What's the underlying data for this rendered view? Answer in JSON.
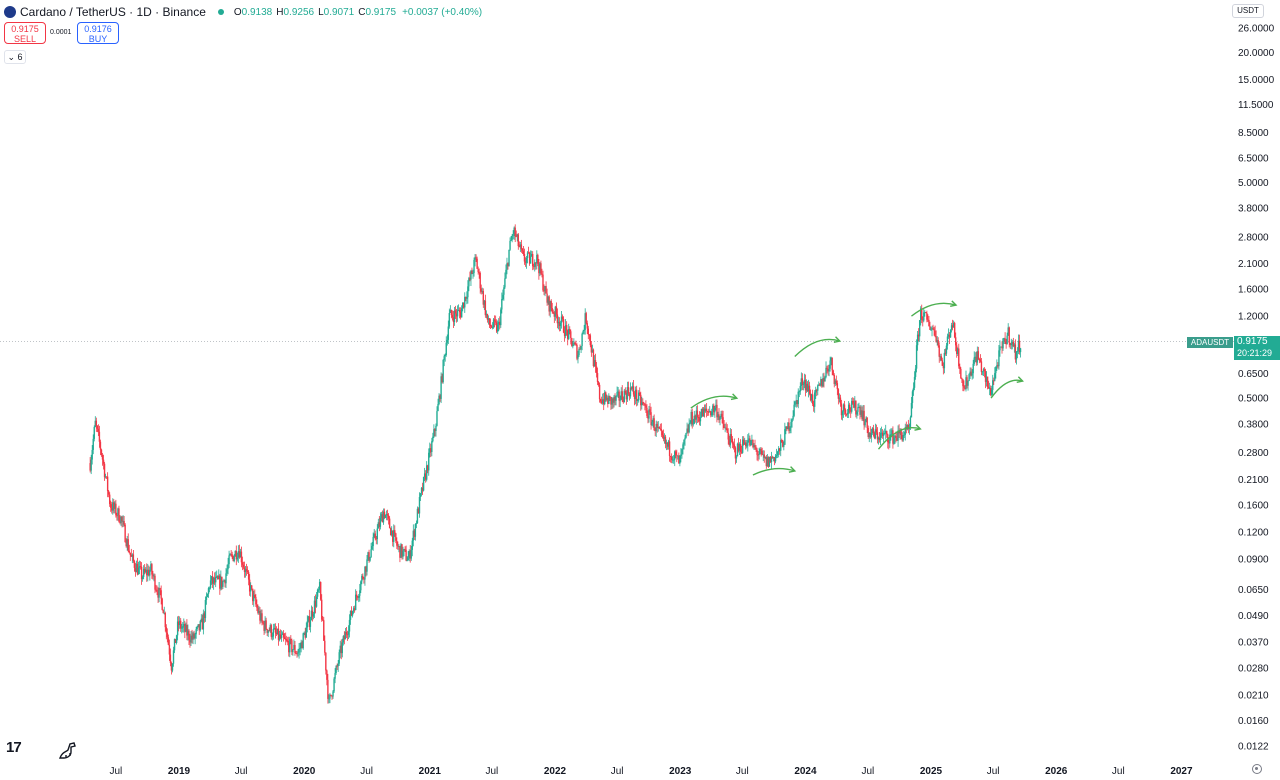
{
  "header": {
    "title": "Cardano / TetherUS · 1D · Binance",
    "o_label": "O",
    "o_value": "0.9138",
    "h_label": "H",
    "h_value": "0.9256",
    "l_label": "L",
    "l_value": "0.9071",
    "c_label": "C",
    "c_value": "0.9175",
    "change": "+0.0037 (+0.40%)"
  },
  "trade": {
    "sell_price": "0.9175",
    "sell_label": "SELL",
    "spread": "0.0001",
    "buy_price": "0.9176",
    "buy_label": "BUY"
  },
  "indicators_count": "6",
  "currency": "USDT",
  "ticker": "ADAUSDT",
  "last_price": "0.9175",
  "countdown": "20:21:29",
  "brand": "17",
  "colors": {
    "up": "#22ab94",
    "down": "#f23645",
    "arrow": "#4caf50",
    "text": "#131722"
  },
  "chart_data": {
    "type": "candlestick",
    "symbol": "ADAUSDT",
    "interval": "1D",
    "y_scale": "log",
    "ylim": [
      0.0122,
      26.0
    ],
    "y_ticks": [
      "26.0000",
      "20.0000",
      "15.0000",
      "11.5000",
      "8.5000",
      "6.5000",
      "5.0000",
      "3.8000",
      "2.8000",
      "2.1000",
      "1.6000",
      "1.2000",
      "0.8500",
      "0.6500",
      "0.5000",
      "0.3800",
      "0.2800",
      "0.2100",
      "0.1600",
      "0.1200",
      "0.0900",
      "0.0650",
      "0.0490",
      "0.0370",
      "0.0280",
      "0.0210",
      "0.0160",
      "0.0122"
    ],
    "x_ticks": [
      "Jul",
      "2019",
      "Jul",
      "2020",
      "Jul",
      "2021",
      "Jul",
      "2022",
      "Jul",
      "2023",
      "Jul",
      "2024",
      "Jul",
      "2025",
      "Jul",
      "2026",
      "Jul",
      "2027"
    ],
    "x_tick_dates": [
      "2018-07-01",
      "2019-01-01",
      "2019-07-01",
      "2020-01-01",
      "2020-07-01",
      "2021-01-01",
      "2021-07-01",
      "2022-01-01",
      "2022-07-01",
      "2023-01-01",
      "2023-07-01",
      "2024-01-01",
      "2024-07-01",
      "2025-01-01",
      "2025-07-01",
      "2026-01-01",
      "2026-07-01",
      "2027-01-01"
    ],
    "last_price": 0.9175,
    "price_path": [
      [
        "2018-04-17",
        0.25
      ],
      [
        "2018-05-02",
        0.38
      ],
      [
        "2018-05-20",
        0.28
      ],
      [
        "2018-06-15",
        0.16
      ],
      [
        "2018-07-15",
        0.14
      ],
      [
        "2018-08-15",
        0.09
      ],
      [
        "2018-09-15",
        0.075
      ],
      [
        "2018-10-10",
        0.08
      ],
      [
        "2018-11-15",
        0.055
      ],
      [
        "2018-12-10",
        0.029
      ],
      [
        "2018-12-30",
        0.045
      ],
      [
        "2019-02-10",
        0.038
      ],
      [
        "2019-03-10",
        0.045
      ],
      [
        "2019-04-01",
        0.07
      ],
      [
        "2019-05-10",
        0.07
      ],
      [
        "2019-05-30",
        0.09
      ],
      [
        "2019-06-25",
        0.1
      ],
      [
        "2019-08-01",
        0.062
      ],
      [
        "2019-09-01",
        0.045
      ],
      [
        "2019-10-10",
        0.04
      ],
      [
        "2019-12-15",
        0.033
      ],
      [
        "2020-02-15",
        0.065
      ],
      [
        "2020-03-13",
        0.019
      ],
      [
        "2020-04-15",
        0.033
      ],
      [
        "2020-06-01",
        0.06
      ],
      [
        "2020-07-05",
        0.09
      ],
      [
        "2020-08-20",
        0.15
      ],
      [
        "2020-10-01",
        0.1
      ],
      [
        "2020-11-01",
        0.09
      ],
      [
        "2020-12-01",
        0.16
      ],
      [
        "2021-01-15",
        0.35
      ],
      [
        "2021-02-01",
        0.55
      ],
      [
        "2021-02-27",
        1.2
      ],
      [
        "2021-04-01",
        1.25
      ],
      [
        "2021-05-15",
        2.2
      ],
      [
        "2021-06-20",
        1.1
      ],
      [
        "2021-07-20",
        1.05
      ],
      [
        "2021-08-20",
        2.4
      ],
      [
        "2021-09-02",
        3.0
      ],
      [
        "2021-10-01",
        2.2
      ],
      [
        "2021-11-10",
        2.2
      ],
      [
        "2021-12-10",
        1.4
      ],
      [
        "2022-01-22",
        1.1
      ],
      [
        "2022-03-10",
        0.8
      ],
      [
        "2022-04-01",
        1.2
      ],
      [
        "2022-05-12",
        0.5
      ],
      [
        "2022-06-20",
        0.48
      ],
      [
        "2022-08-10",
        0.55
      ],
      [
        "2022-09-20",
        0.45
      ],
      [
        "2022-11-10",
        0.32
      ],
      [
        "2022-12-30",
        0.25
      ],
      [
        "2023-02-01",
        0.4
      ],
      [
        "2023-04-15",
        0.45
      ],
      [
        "2023-06-10",
        0.28
      ],
      [
        "2023-07-15",
        0.32
      ],
      [
        "2023-09-10",
        0.25
      ],
      [
        "2023-10-15",
        0.28
      ],
      [
        "2023-11-20",
        0.4
      ],
      [
        "2023-12-25",
        0.62
      ],
      [
        "2024-01-25",
        0.48
      ],
      [
        "2024-03-14",
        0.75
      ],
      [
        "2024-04-15",
        0.45
      ],
      [
        "2024-06-10",
        0.45
      ],
      [
        "2024-07-05",
        0.34
      ],
      [
        "2024-09-15",
        0.33
      ],
      [
        "2024-10-30",
        0.35
      ],
      [
        "2024-11-25",
        1.0
      ],
      [
        "2024-12-02",
        1.25
      ],
      [
        "2025-01-15",
        1.0
      ],
      [
        "2025-02-03",
        0.7
      ],
      [
        "2025-03-03",
        1.15
      ],
      [
        "2025-04-07",
        0.55
      ],
      [
        "2025-05-15",
        0.8
      ],
      [
        "2025-06-22",
        0.53
      ],
      [
        "2025-07-20",
        0.8
      ],
      [
        "2025-08-14",
        1.0
      ],
      [
        "2025-09-05",
        0.8
      ],
      [
        "2025-09-20",
        0.9175
      ]
    ],
    "annotations": [
      {
        "type": "curved-arrow",
        "from": [
          "2023-02-01",
          0.45
        ],
        "to": [
          "2023-06-15",
          0.5
        ]
      },
      {
        "type": "curved-arrow",
        "from": [
          "2023-08-01",
          0.22
        ],
        "to": [
          "2023-12-01",
          0.23
        ]
      },
      {
        "type": "curved-arrow",
        "from": [
          "2023-12-01",
          0.78
        ],
        "to": [
          "2024-04-10",
          0.92
        ]
      },
      {
        "type": "curved-arrow",
        "from": [
          "2024-08-01",
          0.29
        ],
        "to": [
          "2024-12-01",
          0.36
        ]
      },
      {
        "type": "curved-arrow",
        "from": [
          "2024-11-05",
          1.2
        ],
        "to": [
          "2025-03-15",
          1.35
        ]
      },
      {
        "type": "curved-arrow",
        "from": [
          "2025-06-25",
          0.5
        ],
        "to": [
          "2025-09-25",
          0.6
        ]
      }
    ]
  }
}
